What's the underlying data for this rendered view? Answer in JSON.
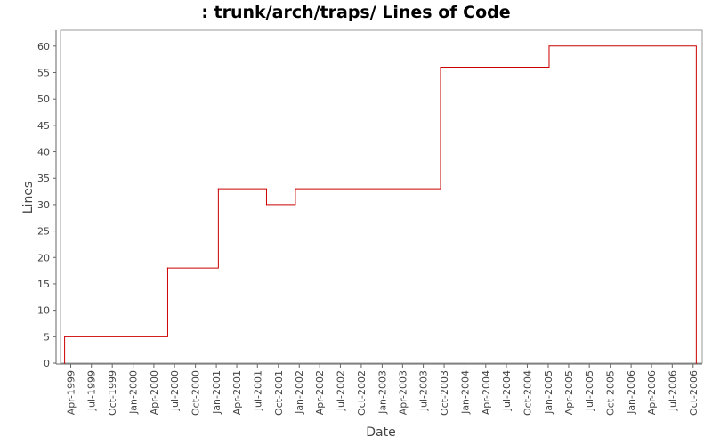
{
  "chart_data": {
    "type": "line",
    "step": true,
    "title": ": trunk/arch/traps/ Lines of Code",
    "xlabel": "Date",
    "ylabel": "Lines",
    "ylim": [
      0,
      63
    ],
    "yticks": [
      0,
      5,
      10,
      15,
      20,
      25,
      30,
      35,
      40,
      45,
      50,
      55,
      60
    ],
    "xlim": [
      "1999-02-15",
      "2006-11-10"
    ],
    "xticks": [
      {
        "date": "1999-04-01",
        "label": "Apr-1999"
      },
      {
        "date": "1999-07-01",
        "label": "Jul-1999"
      },
      {
        "date": "1999-10-01",
        "label": "Oct-1999"
      },
      {
        "date": "2000-01-01",
        "label": "Jan-2000"
      },
      {
        "date": "2000-04-01",
        "label": "Apr-2000"
      },
      {
        "date": "2000-07-01",
        "label": "Jul-2000"
      },
      {
        "date": "2000-10-01",
        "label": "Oct-2000"
      },
      {
        "date": "2001-01-01",
        "label": "Jan-2001"
      },
      {
        "date": "2001-04-01",
        "label": "Apr-2001"
      },
      {
        "date": "2001-07-01",
        "label": "Jul-2001"
      },
      {
        "date": "2001-10-01",
        "label": "Oct-2001"
      },
      {
        "date": "2002-01-01",
        "label": "Jan-2002"
      },
      {
        "date": "2002-04-01",
        "label": "Apr-2002"
      },
      {
        "date": "2002-07-01",
        "label": "Jul-2002"
      },
      {
        "date": "2002-10-01",
        "label": "Oct-2002"
      },
      {
        "date": "2003-01-01",
        "label": "Jan-2003"
      },
      {
        "date": "2003-04-01",
        "label": "Apr-2003"
      },
      {
        "date": "2003-07-01",
        "label": "Jul-2003"
      },
      {
        "date": "2003-10-01",
        "label": "Oct-2003"
      },
      {
        "date": "2004-01-01",
        "label": "Jan-2004"
      },
      {
        "date": "2004-04-01",
        "label": "Apr-2004"
      },
      {
        "date": "2004-07-01",
        "label": "Jul-2004"
      },
      {
        "date": "2004-10-01",
        "label": "Oct-2004"
      },
      {
        "date": "2005-01-01",
        "label": "Jan-2005"
      },
      {
        "date": "2005-04-01",
        "label": "Apr-2005"
      },
      {
        "date": "2005-07-01",
        "label": "Jul-2005"
      },
      {
        "date": "2005-10-01",
        "label": "Oct-2005"
      },
      {
        "date": "2006-01-01",
        "label": "Jan-2006"
      },
      {
        "date": "2006-04-01",
        "label": "Apr-2006"
      },
      {
        "date": "2006-07-01",
        "label": "Jul-2006"
      },
      {
        "date": "2006-10-01",
        "label": "Oct-2006"
      }
    ],
    "grid": false,
    "legend": "none",
    "line_color": "#cc0000",
    "series": [
      {
        "points": [
          {
            "x": "1999-03-05",
            "y": 0
          },
          {
            "x": "1999-03-05",
            "y": 5
          },
          {
            "x": "2000-06-01",
            "y": 18
          },
          {
            "x": "2001-01-10",
            "y": 33
          },
          {
            "x": "2001-08-10",
            "y": 30
          },
          {
            "x": "2001-12-15",
            "y": 33
          },
          {
            "x": "2003-09-15",
            "y": 56
          },
          {
            "x": "2005-01-05",
            "y": 60
          },
          {
            "x": "2006-10-15",
            "y": 0
          }
        ]
      }
    ]
  }
}
